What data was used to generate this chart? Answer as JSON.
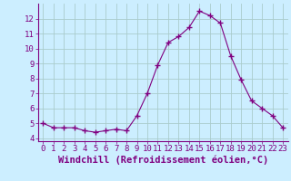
{
  "x": [
    0,
    1,
    2,
    3,
    4,
    5,
    6,
    7,
    8,
    9,
    10,
    11,
    12,
    13,
    14,
    15,
    16,
    17,
    18,
    19,
    20,
    21,
    22,
    23
  ],
  "y": [
    5.0,
    4.7,
    4.7,
    4.7,
    4.5,
    4.4,
    4.5,
    4.6,
    4.5,
    5.5,
    7.0,
    8.9,
    10.4,
    10.8,
    11.4,
    12.5,
    12.2,
    11.7,
    9.5,
    7.9,
    6.5,
    6.0,
    5.5,
    4.7
  ],
  "line_color": "#800080",
  "marker": "+",
  "marker_size": 4,
  "bg_color": "#cceeff",
  "grid_color": "#aacccc",
  "xlabel": "Windchill (Refroidissement éolien,°C)",
  "xlim": [
    -0.5,
    23.5
  ],
  "ylim": [
    3.8,
    13.0
  ],
  "yticks": [
    4,
    5,
    6,
    7,
    8,
    9,
    10,
    11,
    12
  ],
  "xticks": [
    0,
    1,
    2,
    3,
    4,
    5,
    6,
    7,
    8,
    9,
    10,
    11,
    12,
    13,
    14,
    15,
    16,
    17,
    18,
    19,
    20,
    21,
    22,
    23
  ],
  "tick_color": "#800080",
  "label_color": "#800080",
  "font_size": 6.5,
  "xlabel_font_size": 7.5,
  "spine_color": "#800080"
}
